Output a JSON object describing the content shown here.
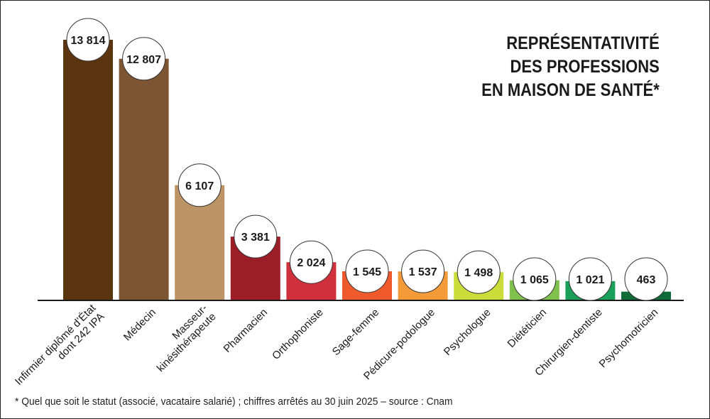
{
  "title_lines": [
    "REPRÉSENTATIVITÉ",
    "DES PROFESSIONS",
    "EN MAISON DE SANTÉ*"
  ],
  "footnote": "* Quel que soit le statut (associé, vacataire salarié) ; chiffres arrêtés au 30 juin 2025 – source : Cnam",
  "chart_data": {
    "type": "bar",
    "title": "REPRÉSENTATIVITÉ DES PROFESSIONS EN MAISON DE SANTÉ*",
    "xlabel": "",
    "ylabel": "",
    "ylim": [
      0,
      13814
    ],
    "grid": false,
    "legend": "none",
    "categories": [
      [
        "Infirmier diplômé d’État",
        "dont 242 IPA"
      ],
      [
        "Médecin"
      ],
      [
        "Masseur-",
        "kinésithérapeute"
      ],
      [
        "Pharmacien"
      ],
      [
        "Orthophoniste"
      ],
      [
        "Sage-femme"
      ],
      [
        "Pédicure-podologue"
      ],
      [
        "Psychologue"
      ],
      [
        "Diététicien"
      ],
      [
        "Chirurgien-dentiste"
      ],
      [
        "Psychomotricien"
      ]
    ],
    "values": [
      13814,
      12807,
      6107,
      3381,
      2024,
      1545,
      1537,
      1498,
      1065,
      1021,
      463
    ],
    "value_labels": [
      "13 814",
      "12 807",
      "6 107",
      "3 381",
      "2 024",
      "1 545",
      "1 537",
      "1 498",
      "1 065",
      "1 021",
      "463"
    ],
    "colors": [
      "#5b3510",
      "#7e5532",
      "#bd9466",
      "#9b1d28",
      "#d02f3c",
      "#ee5a2c",
      "#f59a38",
      "#cadc3a",
      "#80c04c",
      "#1ba05a",
      "#0f6b38"
    ]
  }
}
